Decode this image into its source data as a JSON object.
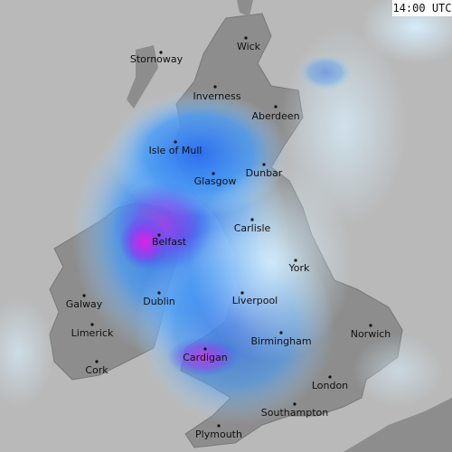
{
  "timestamp": "14:00 UTC",
  "cities": [
    {
      "name": "Stornoway"
    },
    {
      "name": "Wick"
    },
    {
      "name": "Inverness"
    },
    {
      "name": "Aberdeen"
    },
    {
      "name": "Isle of Mull"
    },
    {
      "name": "Dunbar"
    },
    {
      "name": "Glasgow"
    },
    {
      "name": "Carlisle"
    },
    {
      "name": "Belfast"
    },
    {
      "name": "York"
    },
    {
      "name": "Galway"
    },
    {
      "name": "Dublin"
    },
    {
      "name": "Liverpool"
    },
    {
      "name": "Limerick"
    },
    {
      "name": "Norwich"
    },
    {
      "name": "Birmingham"
    },
    {
      "name": "Cork"
    },
    {
      "name": "Cardigan"
    },
    {
      "name": "London"
    },
    {
      "name": "Southampton"
    },
    {
      "name": "Plymouth"
    }
  ]
}
